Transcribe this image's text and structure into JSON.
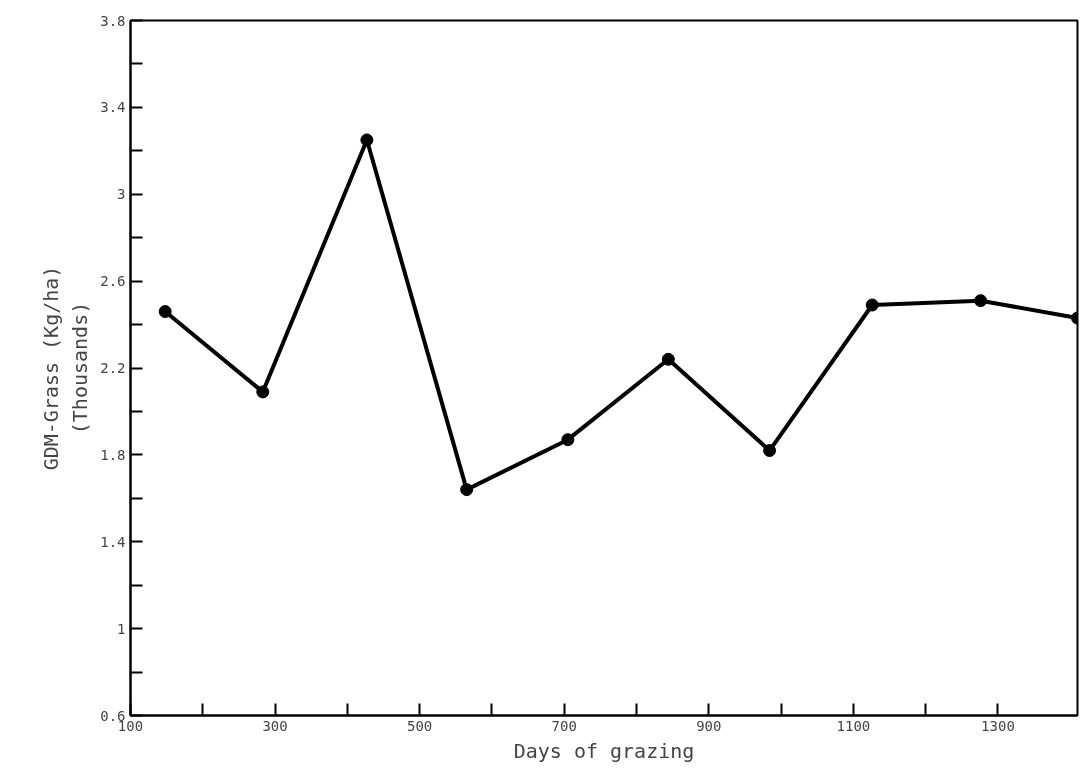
{
  "chart_data": {
    "type": "line",
    "xlabel": "Days of grazing",
    "ylabel": "GDM-Grass (Kg/ha)\n(Thousands)",
    "x": [
      148,
      283,
      427,
      565,
      705,
      844,
      984,
      1126,
      1276,
      1410
    ],
    "series": [
      {
        "color": "#000000",
        "values": [
          2.46,
          2.09,
          3.25,
          1.64,
          1.87,
          2.24,
          1.82,
          2.49,
          2.51,
          2.43
        ]
      }
    ],
    "xlim": [
      100,
      1410
    ],
    "xticks": [
      100,
      {
        "value": 200,
        "label": null
      },
      300,
      {
        "value": 400,
        "label": null
      },
      500,
      {
        "value": 600,
        "label": null
      },
      700,
      {
        "value": 800,
        "label": null
      },
      900,
      {
        "value": 1000,
        "label": null
      },
      1100,
      {
        "value": 1200,
        "label": null
      },
      1300
    ],
    "ylim": [
      0.6,
      3.8
    ],
    "yticks": [
      0.6,
      {
        "value": 0.8,
        "label": null
      },
      1,
      {
        "value": 1.2,
        "label": null
      },
      1.4,
      {
        "value": 1.6,
        "label": null
      },
      1.8,
      {
        "value": 2.0,
        "label": null
      },
      2.2,
      {
        "value": 2.4,
        "label": null
      },
      2.6,
      {
        "value": 2.8,
        "label": null
      },
      3,
      {
        "value": 3.2,
        "label": null
      },
      3.4,
      {
        "value": 3.6,
        "label": null
      },
      3.8
    ],
    "grid": false,
    "marker": "circle",
    "line_style": "solid"
  }
}
